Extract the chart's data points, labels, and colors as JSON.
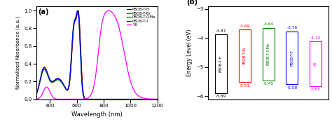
{
  "left_panel_label": "(a)",
  "right_panel_label": "(b)",
  "xlabel_left": "Wavelength (nm)",
  "ylabel_left": "Normalized Absorbance (a.u.)",
  "ylabel_right": "Energy Level (eV)",
  "xlim_left": [
    300,
    1200
  ],
  "ylim_left": [
    0.0,
    1.05
  ],
  "ylim_right": [
    -6.1,
    -2.9
  ],
  "xticks_left": [
    400,
    600,
    800,
    1000,
    1200
  ],
  "yticks_right": [
    -3,
    -4,
    -5,
    -6
  ],
  "legend_labels": [
    "PBDB-T-H",
    "PBDB-T-Br",
    "PBDB-T-OMe",
    "PBDB-T-T",
    "Y6"
  ],
  "legend_colors": [
    "black",
    "red",
    "green",
    "blue",
    "magenta"
  ],
  "bar_labels": [
    "PBDB-T-H",
    "PBDB-T-Br",
    "PBDB-T-OMe",
    "PBDB-T-T",
    "Y6"
  ],
  "bar_colors": [
    "black",
    "red",
    "green",
    "blue",
    "magenta"
  ],
  "homo": [
    -5.89,
    -5.51,
    -5.45,
    -5.58,
    -5.65
  ],
  "lumo": [
    -3.87,
    -3.69,
    -3.64,
    -3.76,
    -4.1
  ],
  "bar_width": 0.5,
  "figsize": [
    4.74,
    1.77
  ],
  "dpi": 100
}
